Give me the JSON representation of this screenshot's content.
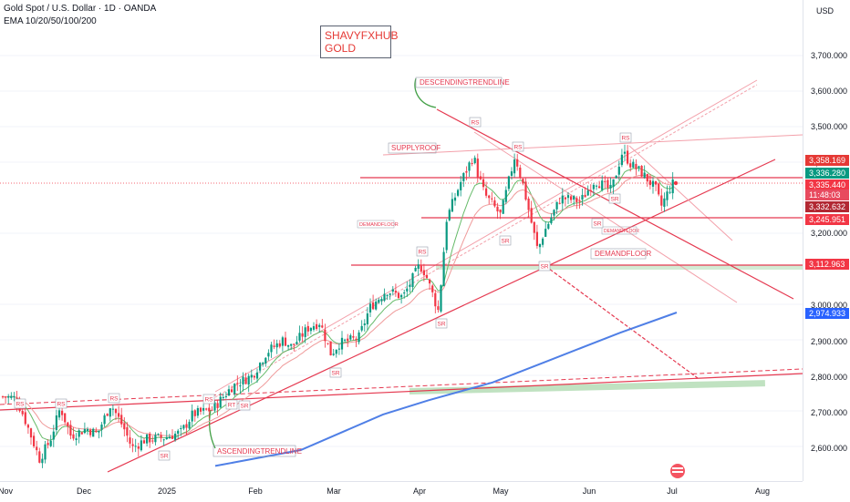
{
  "header": {
    "title": "Gold Spot / U.S. Dollar · 1D · OANDA",
    "indicator": "EMA 10/20/50/100/200"
  },
  "watermark": {
    "line1": "SHAVYFXHUB",
    "line2": "GOLD"
  },
  "price_axis": {
    "currency": "USD",
    "labels": [
      "3,700.000",
      "3,600.000",
      "3,500.000",
      "3,400.000",
      "3,200.000",
      "3,000.000",
      "2,900.000",
      "2,800.000",
      "2,700.000",
      "2,600.000"
    ],
    "tags": [
      {
        "text": "3,358.169",
        "color": "#e53935"
      },
      {
        "text": "3,336.280",
        "color": "#089981"
      },
      {
        "text": "3,335.440",
        "color": "#f23645"
      },
      {
        "text": "11:48:03",
        "color": "#f23645"
      },
      {
        "text": "3,332.632",
        "color": "#b22833"
      },
      {
        "text": "3,245.951",
        "color": "#f23645"
      },
      {
        "text": "3,112.963",
        "color": "#f23645"
      },
      {
        "text": "2,974.933",
        "color": "#2962ff"
      }
    ]
  },
  "time_axis": {
    "labels": [
      "Nov",
      "Dec",
      "2025",
      "Feb",
      "Mar",
      "Apr",
      "May",
      "Jun",
      "Jul",
      "Aug"
    ]
  },
  "annotations": {
    "descending": "DESCENDINGTRENDLINE",
    "ascending": "ASCENDINGTRENDLINE",
    "supply": "SUPPLYROOF",
    "demand_left": "DEMANDFLOOR",
    "demand_right": "DEMANDFLOOR",
    "demand_small": "DEMANDFLOOR",
    "rs": "RS",
    "sr": "SR",
    "rt": "RT"
  },
  "chart_data": {
    "type": "candlestick",
    "title": "Gold Spot / U.S. Dollar · 1D · OANDA",
    "ylim": [
      2550,
      3780
    ],
    "y_ticks": [
      2600,
      2700,
      2800,
      2900,
      3000,
      3200,
      3400,
      3500,
      3600,
      3700
    ],
    "x_ticks": [
      "Nov",
      "Dec",
      "2025",
      "Feb",
      "Mar",
      "Apr",
      "May",
      "Jun",
      "Jul",
      "Aug"
    ],
    "close_path": [
      [
        "Nov 1",
        2740
      ],
      [
        "Nov 5",
        2735
      ],
      [
        "Nov 8",
        2685
      ],
      [
        "Nov 14",
        2565
      ],
      [
        "Nov 18",
        2615
      ],
      [
        "Nov 22",
        2710
      ],
      [
        "Nov 26",
        2630
      ],
      [
        "Dec 2",
        2650
      ],
      [
        "Dec 6",
        2635
      ],
      [
        "Dec 11",
        2720
      ],
      [
        "Dec 16",
        2650
      ],
      [
        "Dec 19",
        2595
      ],
      [
        "Dec 24",
        2620
      ],
      [
        "Dec 31",
        2625
      ],
      [
        "Jan 6",
        2640
      ],
      [
        "Jan 10",
        2690
      ],
      [
        "Jan 17",
        2705
      ],
      [
        "Jan 24",
        2770
      ],
      [
        "Jan 31",
        2800
      ],
      [
        "Feb 5",
        2865
      ],
      [
        "Feb 11",
        2900
      ],
      [
        "Feb 14",
        2880
      ],
      [
        "Feb 20",
        2935
      ],
      [
        "Feb 24",
        2950
      ],
      [
        "Feb 28",
        2860
      ],
      [
        "Mar 3",
        2890
      ],
      [
        "Mar 10",
        2905
      ],
      [
        "Mar 14",
        2990
      ],
      [
        "Mar 20",
        3040
      ],
      [
        "Mar 26",
        3020
      ],
      [
        "Apr 1",
        3110
      ],
      [
        "Apr 3",
        3090
      ],
      [
        "Apr 8",
        2980
      ],
      [
        "Apr 11",
        3240
      ],
      [
        "Apr 16",
        3340
      ],
      [
        "Apr 21",
        3420
      ],
      [
        "Apr 22",
        3380
      ],
      [
        "Apr 25",
        3310
      ],
      [
        "May 1",
        3250
      ],
      [
        "May 6",
        3420
      ],
      [
        "May 9",
        3330
      ],
      [
        "May 14",
        3150
      ],
      [
        "May 16",
        3200
      ],
      [
        "May 22",
        3300
      ],
      [
        "May 29",
        3290
      ],
      [
        "Jun 3",
        3350
      ],
      [
        "Jun 9",
        3320
      ],
      [
        "Jun 13",
        3430
      ],
      [
        "Jun 16",
        3395
      ],
      [
        "Jun 20",
        3370
      ],
      [
        "Jun 25",
        3325
      ],
      [
        "Jun 27",
        3275
      ],
      [
        "Jul 1",
        3340
      ],
      [
        "Jul 2",
        3336
      ]
    ],
    "ema_series": [
      {
        "name": "EMA 10/20/50/100/200",
        "values": [
          [
            "Nov 1",
            2700
          ],
          [
            "Jan 24",
            2740
          ],
          [
            "Apr 22",
            3300
          ],
          [
            "Jul 2",
            3320
          ]
        ]
      }
    ],
    "horizontal_levels": [
      3358.169,
      3336.28,
      3245.951,
      3112.963
    ],
    "current_price": 3336.28
  }
}
